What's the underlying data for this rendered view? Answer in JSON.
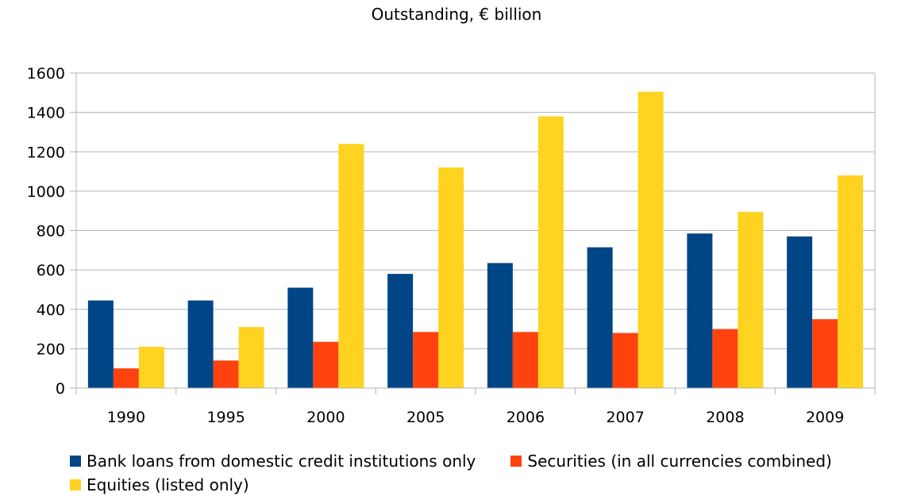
{
  "chart_data": {
    "type": "bar",
    "title": "Outstanding, € billion",
    "xlabel": "",
    "ylabel": "",
    "categories": [
      "1990",
      "1995",
      "2000",
      "2005",
      "2006",
      "2007",
      "2008",
      "2009"
    ],
    "series": [
      {
        "name": "Bank loans from domestic credit institutions only",
        "color": "#004586",
        "values": [
          445,
          445,
          510,
          580,
          635,
          715,
          785,
          770
        ]
      },
      {
        "name": "Securities (in all currencies combined)",
        "color": "#ff420e",
        "values": [
          100,
          140,
          235,
          285,
          285,
          280,
          300,
          350
        ]
      },
      {
        "name": "Equities (listed only)",
        "color": "#ffd320",
        "values": [
          210,
          310,
          1240,
          1120,
          1380,
          1505,
          895,
          1080
        ]
      }
    ],
    "ylim": [
      0,
      1600
    ],
    "yticks": [
      "0",
      "200",
      "400",
      "600",
      "800",
      "1000",
      "1200",
      "1400",
      "1600"
    ],
    "grid": true,
    "legend_position": "bottom"
  }
}
